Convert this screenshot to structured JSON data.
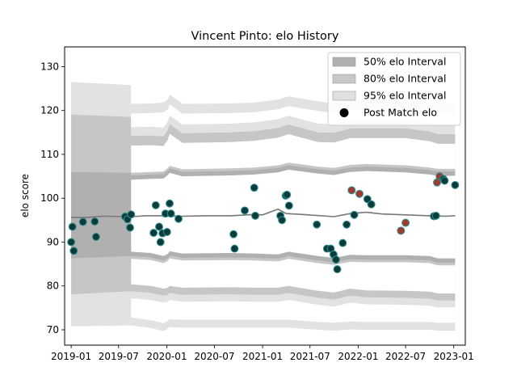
{
  "chart_data": {
    "type": "scatter",
    "title": "Vincent Pinto: elo History",
    "xlabel": "",
    "ylabel": "elo score",
    "xlim": [
      "2018-12-07",
      "2023-02-14"
    ],
    "ylim": [
      66.5,
      134.5
    ],
    "grid": false,
    "legend_position": "top-right",
    "x_tick_labels": [
      "2019-01",
      "2019-07",
      "2020-01",
      "2020-07",
      "2021-01",
      "2021-07",
      "2022-01",
      "2022-07",
      "2023-01"
    ],
    "x_ticks": [
      "2019-01-01",
      "2019-07-01",
      "2020-01-01",
      "2020-07-01",
      "2021-01-01",
      "2021-07-01",
      "2022-01-01",
      "2022-07-01",
      "2023-01-01"
    ],
    "y_ticks": [
      70,
      80,
      90,
      100,
      110,
      120,
      130
    ],
    "legend": [
      {
        "label": "50% elo Interval",
        "kind": "patch",
        "color": "#b0b0b0"
      },
      {
        "label": "80% elo Interval",
        "kind": "patch",
        "color": "#c8c8c8"
      },
      {
        "label": "95% elo Interval",
        "kind": "patch",
        "color": "#e0e0e0"
      },
      {
        "label": "Post Match elo",
        "kind": "marker",
        "color": "#000000"
      }
    ],
    "colors": {
      "band50": "#b0b0b0",
      "band80": "#c6c6c6",
      "band95": "#e2e2e2",
      "mean_line": "#777777",
      "win_marker": "#0c3b3b",
      "loss_marker": "#a23a2c",
      "marker_edge": "#2e8b8b"
    },
    "series": [
      {
        "name": "Post Match elo",
        "points": [
          {
            "x": "2019-01-01",
            "y": 90.0,
            "r": "w"
          },
          {
            "x": "2019-01-06",
            "y": 93.5,
            "r": "w"
          },
          {
            "x": "2019-01-11",
            "y": 88.0,
            "r": "w"
          },
          {
            "x": "2019-02-15",
            "y": 94.6,
            "r": "w"
          },
          {
            "x": "2019-04-01",
            "y": 94.7,
            "r": "w"
          },
          {
            "x": "2019-04-06",
            "y": 91.2,
            "r": "w"
          },
          {
            "x": "2019-07-26",
            "y": 95.8,
            "r": "w"
          },
          {
            "x": "2019-08-04",
            "y": 95.2,
            "r": "w"
          },
          {
            "x": "2019-08-14",
            "y": 93.3,
            "r": "w"
          },
          {
            "x": "2019-08-18",
            "y": 96.3,
            "r": "w"
          },
          {
            "x": "2019-11-12",
            "y": 92.1,
            "r": "w"
          },
          {
            "x": "2019-11-20",
            "y": 98.4,
            "r": "w"
          },
          {
            "x": "2019-12-03",
            "y": 93.5,
            "r": "w"
          },
          {
            "x": "2019-12-08",
            "y": 90.0,
            "r": "w"
          },
          {
            "x": "2019-12-16",
            "y": 92.0,
            "r": "w"
          },
          {
            "x": "2019-12-27",
            "y": 96.5,
            "r": "w"
          },
          {
            "x": "2020-01-02",
            "y": 92.3,
            "r": "w"
          },
          {
            "x": "2020-01-12",
            "y": 98.8,
            "r": "w"
          },
          {
            "x": "2020-01-17",
            "y": 96.5,
            "r": "w"
          },
          {
            "x": "2020-02-15",
            "y": 95.3,
            "r": "w"
          },
          {
            "x": "2020-09-12",
            "y": 91.8,
            "r": "w"
          },
          {
            "x": "2020-09-16",
            "y": 88.5,
            "r": "w"
          },
          {
            "x": "2020-10-25",
            "y": 97.2,
            "r": "w"
          },
          {
            "x": "2020-11-30",
            "y": 102.4,
            "r": "w"
          },
          {
            "x": "2020-12-04",
            "y": 96.0,
            "r": "w"
          },
          {
            "x": "2021-03-10",
            "y": 96.0,
            "r": "w"
          },
          {
            "x": "2021-03-16",
            "y": 95.0,
            "r": "w"
          },
          {
            "x": "2021-03-30",
            "y": 100.6,
            "r": "w"
          },
          {
            "x": "2021-04-04",
            "y": 100.8,
            "r": "w"
          },
          {
            "x": "2021-04-12",
            "y": 98.3,
            "r": "w"
          },
          {
            "x": "2021-07-27",
            "y": 94.0,
            "r": "w"
          },
          {
            "x": "2021-09-04",
            "y": 88.5,
            "r": "w"
          },
          {
            "x": "2021-09-18",
            "y": 88.5,
            "r": "w"
          },
          {
            "x": "2021-09-29",
            "y": 87.2,
            "r": "w"
          },
          {
            "x": "2021-10-08",
            "y": 86.0,
            "r": "w"
          },
          {
            "x": "2021-10-13",
            "y": 83.8,
            "r": "w"
          },
          {
            "x": "2021-11-03",
            "y": 89.8,
            "r": "w"
          },
          {
            "x": "2021-11-18",
            "y": 94.0,
            "r": "w"
          },
          {
            "x": "2021-12-07",
            "y": 101.8,
            "r": "l"
          },
          {
            "x": "2021-12-17",
            "y": 96.2,
            "r": "w"
          },
          {
            "x": "2022-01-06",
            "y": 101.0,
            "r": "l"
          },
          {
            "x": "2022-02-05",
            "y": 99.8,
            "r": "w"
          },
          {
            "x": "2022-02-20",
            "y": 98.6,
            "r": "w"
          },
          {
            "x": "2022-06-13",
            "y": 92.6,
            "r": "l"
          },
          {
            "x": "2022-07-01",
            "y": 94.4,
            "r": "l"
          },
          {
            "x": "2022-10-17",
            "y": 95.9,
            "r": "w"
          },
          {
            "x": "2022-10-25",
            "y": 96.0,
            "r": "w"
          },
          {
            "x": "2022-10-29",
            "y": 103.6,
            "r": "l"
          },
          {
            "x": "2022-11-08",
            "y": 105.0,
            "r": "l"
          },
          {
            "x": "2022-11-22",
            "y": 104.4,
            "r": "w"
          },
          {
            "x": "2022-11-27",
            "y": 104.0,
            "r": "w"
          },
          {
            "x": "2023-01-06",
            "y": 103.0,
            "r": "w"
          }
        ]
      },
      {
        "name": "Mean elo",
        "points": [
          {
            "x": "2019-01-01",
            "y": 95.6
          },
          {
            "x": "2019-03-01",
            "y": 95.6
          },
          {
            "x": "2019-05-01",
            "y": 95.9
          },
          {
            "x": "2019-08-18",
            "y": 95.8
          },
          {
            "x": "2019-10-15",
            "y": 96.0
          },
          {
            "x": "2020-01-01",
            "y": 96.0
          },
          {
            "x": "2020-03-01",
            "y": 95.9
          },
          {
            "x": "2020-06-01",
            "y": 96.0
          },
          {
            "x": "2020-09-01",
            "y": 96.0
          },
          {
            "x": "2020-12-01",
            "y": 96.3
          },
          {
            "x": "2021-01-01",
            "y": 96.2
          },
          {
            "x": "2021-03-01",
            "y": 97.5
          },
          {
            "x": "2021-04-01",
            "y": 96.5
          },
          {
            "x": "2021-06-01",
            "y": 96.3
          },
          {
            "x": "2021-10-01",
            "y": 95.8
          },
          {
            "x": "2021-12-01",
            "y": 96.5
          },
          {
            "x": "2022-02-01",
            "y": 96.8
          },
          {
            "x": "2022-04-01",
            "y": 96.4
          },
          {
            "x": "2022-07-01",
            "y": 96.2
          },
          {
            "x": "2022-10-01",
            "y": 96.0
          },
          {
            "x": "2022-12-01",
            "y": 95.9
          },
          {
            "x": "2023-01-06",
            "y": 96.0
          }
        ]
      }
    ],
    "intervals": {
      "x": [
        "2019-01-01",
        "2019-08-17",
        "2019-08-18",
        "2019-11-01",
        "2019-12-20",
        "2020-01-05",
        "2020-01-12",
        "2020-03-01",
        "2020-09-01",
        "2020-12-01",
        "2021-03-01",
        "2021-04-10",
        "2021-08-01",
        "2021-10-01",
        "2021-12-01",
        "2022-02-01",
        "2022-07-01",
        "2022-10-01",
        "2022-11-01",
        "2023-01-06"
      ],
      "p95_lower": [
        70.8,
        71.0,
        71.0,
        70.4,
        69.7,
        70.3,
        70.6,
        70.5,
        70.5,
        70.5,
        70.5,
        70.5,
        70.0,
        69.8,
        70.1,
        70.0,
        70.0,
        70.0,
        69.8,
        69.8
      ],
      "p95_upper": [
        126.5,
        125.8,
        121.5,
        121.6,
        121.8,
        122.5,
        123.6,
        121.5,
        121.6,
        121.8,
        122.5,
        123.2,
        122.1,
        121.6,
        122.4,
        122.6,
        122.3,
        121.5,
        121.7,
        121.6
      ],
      "p80_lower": [
        78.1,
        78.8,
        78.8,
        78.4,
        77.8,
        78.0,
        78.4,
        78.0,
        78.1,
        78.0,
        78.0,
        78.4,
        77.3,
        76.9,
        77.8,
        77.4,
        77.3,
        77.1,
        76.7,
        76.7
      ],
      "p80_upper": [
        119.1,
        118.5,
        114.2,
        114.3,
        114.1,
        115.5,
        116.9,
        114.8,
        115.0,
        115.3,
        116.0,
        116.8,
        115.0,
        114.9,
        115.9,
        115.9,
        115.9,
        115.2,
        114.6,
        114.6
      ],
      "p50_lower": [
        86.3,
        86.8,
        86.8,
        86.5,
        85.8,
        86.3,
        86.9,
        86.4,
        86.5,
        86.4,
        86.2,
        86.8,
        85.8,
        85.4,
        86.1,
        86.0,
        86.0,
        85.8,
        85.3,
        85.3
      ],
      "p50_upper": [
        106.0,
        105.8,
        105.2,
        105.4,
        105.5,
        106.3,
        106.8,
        106.0,
        106.2,
        106.4,
        106.9,
        107.5,
        106.6,
        106.3,
        107.0,
        107.2,
        106.9,
        106.4,
        106.1,
        106.1
      ]
    }
  }
}
